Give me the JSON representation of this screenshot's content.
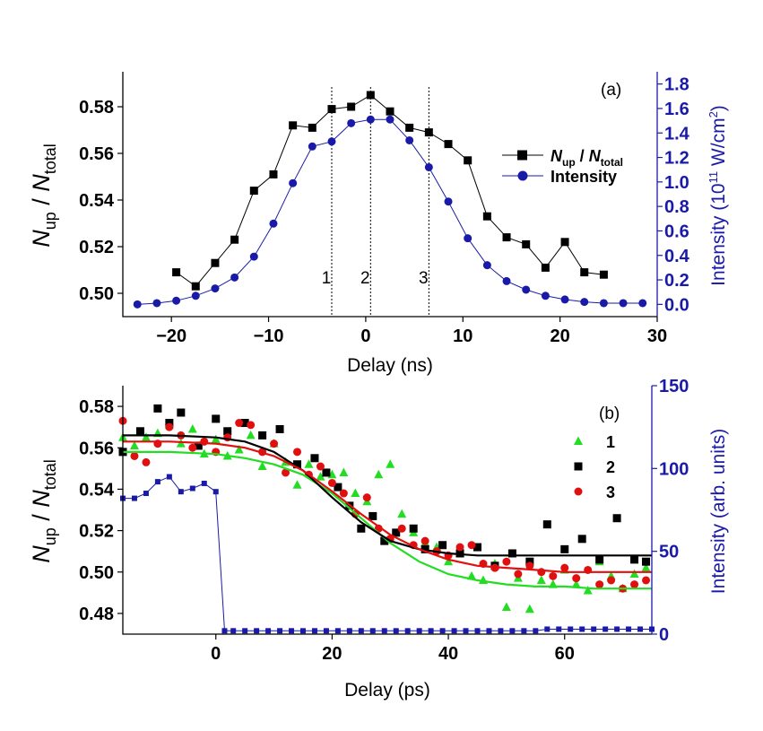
{
  "chart_data": [
    {
      "panel": "(a)",
      "type": "line",
      "xlabel": "Delay (ns)",
      "xlim": [
        -25,
        30
      ],
      "xticks": [
        -20,
        -10,
        0,
        10,
        20,
        30
      ],
      "ylabel": {
        "n1": "N",
        "s1": "up",
        "sep": " / ",
        "n2": "N",
        "s2": "total"
      },
      "ylim": [
        0.49,
        0.595
      ],
      "yticks": [
        0.5,
        0.52,
        0.54,
        0.56,
        0.58
      ],
      "ylabel_right": {
        "main": "Intensity (10",
        "sup1": "11",
        "mid": " W/cm",
        "sup2": "2",
        "end": ")"
      },
      "ylim_right": [
        -0.1,
        1.9
      ],
      "yticks_right": [
        0.0,
        0.2,
        0.4,
        0.6,
        0.8,
        1.0,
        1.2,
        1.4,
        1.6,
        1.8
      ],
      "legend_position": "right",
      "markers": [
        {
          "label": "1",
          "x": -3.5
        },
        {
          "label": "2",
          "x": 0.5
        },
        {
          "label": "3",
          "x": 6.5
        }
      ],
      "series": [
        {
          "name": {
            "n1": "N",
            "s1": "up",
            "sep": " / ",
            "n2": "N",
            "s2": "total"
          },
          "axis": "left",
          "color": "#000000",
          "marker": "square",
          "x": [
            -19.5,
            -17.5,
            -15.5,
            -13.5,
            -11.5,
            -9.5,
            -7.5,
            -5.5,
            -3.5,
            -1.5,
            0.5,
            2.5,
            4.5,
            6.5,
            8.5,
            10.5,
            12.5,
            14.5,
            16.5,
            18.5,
            20.5,
            22.5,
            24.5
          ],
          "values": [
            0.509,
            0.503,
            0.513,
            0.523,
            0.544,
            0.551,
            0.572,
            0.571,
            0.579,
            0.58,
            0.585,
            0.578,
            0.571,
            0.569,
            0.564,
            0.557,
            0.533,
            0.524,
            0.521,
            0.511,
            0.522,
            0.509,
            0.508
          ]
        },
        {
          "name": "Intensity",
          "axis": "right",
          "color": "#1a1aa8",
          "marker": "circle",
          "x": [
            -23.5,
            -21.5,
            -19.5,
            -17.5,
            -15.5,
            -13.5,
            -11.5,
            -9.5,
            -7.5,
            -5.5,
            -3.5,
            -1.5,
            0.5,
            2.5,
            4.5,
            6.5,
            8.5,
            10.5,
            12.5,
            14.5,
            16.5,
            18.5,
            20.5,
            22.5,
            24.5,
            26.5,
            28.5
          ],
          "values": [
            0.0,
            0.01,
            0.03,
            0.07,
            0.13,
            0.22,
            0.39,
            0.66,
            0.99,
            1.29,
            1.33,
            1.48,
            1.51,
            1.51,
            1.34,
            1.12,
            0.84,
            0.54,
            0.32,
            0.19,
            0.12,
            0.07,
            0.04,
            0.02,
            0.01,
            0.01,
            0.01
          ]
        }
      ]
    },
    {
      "panel": "(b)",
      "type": "scatter",
      "xlabel": "Delay (ps)",
      "xlim": [
        -16,
        75
      ],
      "xticks": [
        0,
        20,
        40,
        60
      ],
      "ylabel": {
        "n1": "N",
        "s1": "up",
        "sep": " / ",
        "n2": "N",
        "s2": "total"
      },
      "ylim": [
        0.47,
        0.59
      ],
      "yticks": [
        0.48,
        0.5,
        0.52,
        0.54,
        0.56,
        0.58
      ],
      "ylabel_right": "Intensity (arb. units)",
      "ylim_right": [
        0,
        150
      ],
      "yticks_right": [
        0,
        50,
        100,
        150
      ],
      "legend_position": "right",
      "series": [
        {
          "name": "1",
          "color": "#22dd22",
          "marker": "triangle",
          "x": [
            -16,
            -14,
            -12,
            -10,
            -8,
            -6,
            -4,
            -2,
            0,
            2,
            4,
            6,
            8,
            10,
            12,
            14,
            16,
            18,
            20,
            22,
            24,
            26,
            28,
            30,
            32,
            34,
            36,
            38,
            40,
            42,
            44,
            46,
            48,
            50,
            52,
            54,
            56,
            58,
            60,
            62,
            64,
            66,
            68,
            70,
            72,
            74
          ],
          "values": [
            0.565,
            0.561,
            0.565,
            0.567,
            0.571,
            0.562,
            0.569,
            0.557,
            0.564,
            0.556,
            0.559,
            0.566,
            0.551,
            0.562,
            0.553,
            0.542,
            0.552,
            0.546,
            0.547,
            0.548,
            0.538,
            0.534,
            0.547,
            0.552,
            0.528,
            0.519,
            0.514,
            0.512,
            0.505,
            0.509,
            0.498,
            0.496,
            0.504,
            0.483,
            0.497,
            0.482,
            0.496,
            0.494,
            0.501,
            0.494,
            0.491,
            0.505,
            0.498,
            0.492,
            0.499,
            0.502
          ]
        },
        {
          "name": "2",
          "color": "#000000",
          "marker": "square",
          "x": [
            -16,
            -13,
            -10,
            -8,
            -6,
            -3,
            0,
            2,
            5,
            8,
            11,
            14,
            17,
            19,
            21,
            23,
            25,
            27,
            29,
            31,
            34,
            36,
            39,
            42,
            45,
            48,
            51,
            54,
            57,
            60,
            63,
            66,
            69,
            72,
            74
          ],
          "values": [
            0.558,
            0.568,
            0.579,
            0.572,
            0.577,
            0.561,
            0.574,
            0.568,
            0.572,
            0.566,
            0.569,
            0.552,
            0.555,
            0.548,
            0.541,
            0.532,
            0.521,
            0.527,
            0.515,
            0.519,
            0.521,
            0.511,
            0.513,
            0.509,
            0.512,
            0.503,
            0.509,
            0.505,
            0.523,
            0.511,
            0.516,
            0.506,
            0.526,
            0.506,
            0.505
          ]
        },
        {
          "name": "3",
          "color": "#e01010",
          "marker": "circle",
          "x": [
            -16,
            -14,
            -12,
            -10,
            -8,
            -6,
            -4,
            -2,
            0,
            2,
            4,
            6,
            8,
            10,
            12,
            14,
            16,
            18,
            20,
            22,
            24,
            26,
            28,
            30,
            32,
            34,
            36,
            38,
            40,
            42,
            44,
            46,
            48,
            50,
            52,
            54,
            56,
            58,
            60,
            62,
            64,
            66,
            68,
            70,
            72,
            74
          ],
          "values": [
            0.573,
            0.556,
            0.553,
            0.562,
            0.57,
            0.566,
            0.56,
            0.563,
            0.558,
            0.565,
            0.572,
            0.571,
            0.558,
            0.562,
            0.548,
            0.558,
            0.547,
            0.551,
            0.543,
            0.538,
            0.528,
            0.536,
            0.521,
            0.516,
            0.521,
            0.513,
            0.515,
            0.51,
            0.508,
            0.512,
            0.513,
            0.504,
            0.502,
            0.505,
            0.499,
            0.503,
            0.5,
            0.498,
            0.502,
            0.497,
            0.501,
            0.494,
            0.496,
            0.492,
            0.494,
            0.496
          ]
        },
        {
          "name": "1 fit",
          "color": "#22dd22",
          "marker": "none",
          "fit": true,
          "x": [
            -16,
            -8,
            0,
            5,
            10,
            15,
            20,
            25,
            30,
            35,
            40,
            45,
            50,
            55,
            60,
            65,
            70,
            75
          ],
          "values": [
            0.558,
            0.558,
            0.557,
            0.555,
            0.552,
            0.547,
            0.538,
            0.526,
            0.514,
            0.505,
            0.499,
            0.496,
            0.494,
            0.493,
            0.493,
            0.492,
            0.492,
            0.492
          ]
        },
        {
          "name": "2 fit",
          "color": "#000000",
          "marker": "none",
          "fit": true,
          "x": [
            -16,
            -8,
            0,
            5,
            10,
            15,
            20,
            25,
            30,
            35,
            40,
            45,
            50,
            55,
            60,
            65,
            70,
            75
          ],
          "values": [
            0.566,
            0.566,
            0.565,
            0.563,
            0.558,
            0.549,
            0.536,
            0.524,
            0.515,
            0.511,
            0.509,
            0.508,
            0.508,
            0.508,
            0.508,
            0.508,
            0.508,
            0.508
          ]
        },
        {
          "name": "3 fit",
          "color": "#e01010",
          "marker": "none",
          "fit": true,
          "x": [
            -16,
            -8,
            0,
            5,
            10,
            15,
            20,
            25,
            30,
            35,
            40,
            45,
            50,
            55,
            60,
            65,
            70,
            75
          ],
          "values": [
            0.563,
            0.563,
            0.562,
            0.56,
            0.556,
            0.549,
            0.539,
            0.528,
            0.518,
            0.511,
            0.506,
            0.503,
            0.502,
            0.501,
            0.5,
            0.5,
            0.5,
            0.5
          ]
        },
        {
          "name": "Intensity",
          "axis": "right",
          "color": "#1a1aa8",
          "marker": "small-square",
          "line": true,
          "x": [
            -16,
            -14,
            -12,
            -10,
            -8,
            -6,
            -4,
            -2,
            0,
            1.5,
            3,
            5,
            7,
            9,
            11,
            13,
            15,
            17,
            19,
            21,
            23,
            25,
            27,
            29,
            31,
            33,
            35,
            37,
            39,
            41,
            43,
            45,
            47,
            49,
            51,
            53,
            55,
            57,
            59,
            61,
            63,
            65,
            67,
            69,
            71,
            73,
            75
          ],
          "values": [
            82,
            82,
            85,
            92,
            95,
            86,
            88,
            91,
            86,
            2,
            2,
            2,
            2,
            2,
            2,
            2,
            2,
            2,
            2,
            2,
            2,
            2,
            2,
            2,
            2,
            2,
            2,
            2,
            2,
            2,
            2,
            2,
            2,
            2,
            2,
            2,
            2,
            3,
            3,
            3,
            3,
            3,
            3,
            3,
            3,
            3,
            3
          ]
        }
      ]
    }
  ]
}
